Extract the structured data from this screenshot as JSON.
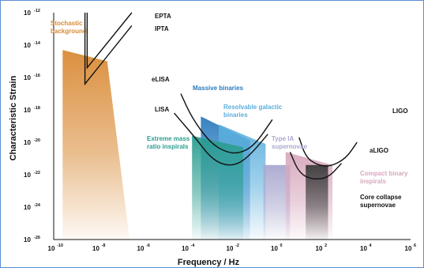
{
  "chart_data": {
    "type": "area",
    "xlabel": "Frequency / Hz",
    "ylabel": "Characteristic Strain",
    "xscale": "log",
    "yscale": "log",
    "xlim_exp": [
      -10,
      6
    ],
    "ylim_exp": [
      -26,
      -12
    ],
    "xticks": [
      -10,
      -8,
      -6,
      -4,
      -2,
      0,
      2,
      4,
      6
    ],
    "yticks": [
      -26,
      -24,
      -22,
      -20,
      -18,
      -16,
      -14,
      -12
    ],
    "tick_base": "10",
    "sources": [
      {
        "name": "Stochastic background",
        "label_lines": [
          "Stochastic",
          "background"
        ],
        "color": "#d98a35",
        "polygon_log": [
          [
            -9.6,
            -14.3
          ],
          [
            -7.6,
            -15.0
          ],
          [
            -6.6,
            -26
          ],
          [
            -9.6,
            -26
          ]
        ]
      },
      {
        "name": "Massive binaries",
        "label_lines": [
          "Massive binaries"
        ],
        "color": "#2b7bbd",
        "polygon_log": [
          [
            -3.4,
            -18.4
          ],
          [
            -1.2,
            -19.9
          ],
          [
            -1.2,
            -26
          ],
          [
            -3.4,
            -26
          ]
        ]
      },
      {
        "name": "Resolvable galactic binaries",
        "label_lines": [
          "Resolvable galactic",
          "binaries"
        ],
        "color": "#5aaedc",
        "polygon_log": [
          [
            -2.6,
            -18.9
          ],
          [
            -0.5,
            -20.1
          ],
          [
            -0.5,
            -26
          ],
          [
            -2.6,
            -26
          ]
        ]
      },
      {
        "name": "Extreme mass ratio inspirals",
        "label_lines": [
          "Extreme mass",
          "ratio inspirals"
        ],
        "color": "#2a9d8f",
        "polygon_log": [
          [
            -3.8,
            -19.6
          ],
          [
            -1.5,
            -20.3
          ],
          [
            -1.5,
            -26
          ],
          [
            -3.8,
            -26
          ]
        ]
      },
      {
        "name": "Type IA supernovae",
        "label_lines": [
          "Type IA",
          "supernovae"
        ],
        "color": "#a9a8cf",
        "polygon_log": [
          [
            -0.6,
            -21.4
          ],
          [
            0.6,
            -21.4
          ],
          [
            0.6,
            -26
          ],
          [
            -0.6,
            -26
          ]
        ]
      },
      {
        "name": "Compact binary inspirals",
        "label_lines": [
          "Compact binary",
          "inspirals"
        ],
        "color": "#d7a7bd",
        "polygon_log": [
          [
            0.4,
            -20.6
          ],
          [
            2.5,
            -21.4
          ],
          [
            2.5,
            -26
          ],
          [
            0.4,
            -26
          ]
        ]
      },
      {
        "name": "Core collapse supernovae",
        "label_lines": [
          "Core collapse",
          "supernovae"
        ],
        "color": "#3c3c3c",
        "polygon_log": [
          [
            1.3,
            -21.4
          ],
          [
            2.3,
            -21.4
          ],
          [
            2.3,
            -26
          ],
          [
            1.3,
            -26
          ]
        ]
      }
    ],
    "detectors": [
      {
        "name": "EPTA",
        "points_log": [
          [
            -8.5,
            -12
          ],
          [
            -8.5,
            -15.4
          ],
          [
            -6.5,
            -12
          ]
        ]
      },
      {
        "name": "IPTA",
        "points_log": [
          [
            -8.6,
            -12
          ],
          [
            -8.6,
            -16.4
          ],
          [
            -6.5,
            -12.8
          ]
        ]
      },
      {
        "name": "eLISA",
        "points_log": [
          [
            -4.3,
            -17.0
          ],
          [
            -3.8,
            -18.5
          ],
          [
            -3.0,
            -20.0
          ],
          [
            -2.3,
            -20.6
          ],
          [
            -1.7,
            -20.7
          ],
          [
            -1.0,
            -20.2
          ],
          [
            -0.2,
            -18.6
          ]
        ]
      },
      {
        "name": "LISA",
        "points_log": [
          [
            -4.6,
            -18.2
          ],
          [
            -3.6,
            -19.8
          ],
          [
            -3.0,
            -20.9
          ],
          [
            -2.4,
            -21.4
          ],
          [
            -1.8,
            -21.4
          ],
          [
            -1.2,
            -20.8
          ],
          [
            -0.4,
            -19.5
          ]
        ]
      },
      {
        "name": "LIGO",
        "points_log": [
          [
            1.0,
            -19.7
          ],
          [
            1.3,
            -20.9
          ],
          [
            1.8,
            -21.4
          ],
          [
            2.4,
            -21.5
          ],
          [
            3.1,
            -21.0
          ],
          [
            3.6,
            -20.0
          ]
        ]
      },
      {
        "name": "aLIGO",
        "points_log": [
          [
            0.6,
            -20.6
          ],
          [
            1.0,
            -21.9
          ],
          [
            1.6,
            -22.3
          ],
          [
            2.3,
            -22.2
          ],
          [
            2.9,
            -21.3
          ]
        ]
      }
    ]
  },
  "styles": {
    "line_color": "#111111",
    "axis_color": "#111111",
    "frame_color": "#5b8fd6"
  }
}
